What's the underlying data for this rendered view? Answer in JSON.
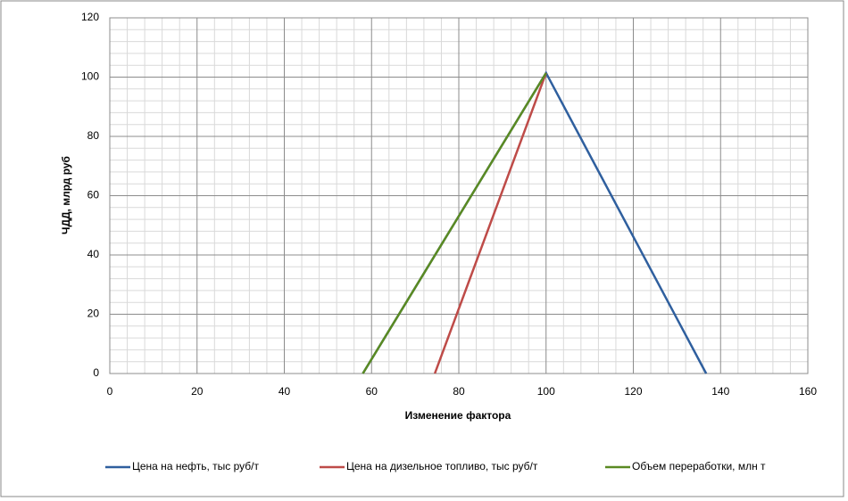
{
  "chart_data": {
    "type": "line",
    "x_label": "Изменение фактора",
    "y_label": "ЧДД, млрд руб",
    "xlim": [
      0,
      160
    ],
    "xticks": [
      0,
      20,
      40,
      60,
      80,
      100,
      120,
      140,
      160
    ],
    "ylim": [
      0,
      120
    ],
    "yticks": [
      0,
      20,
      40,
      60,
      80,
      100,
      120
    ],
    "grid": true,
    "legend": "bottom",
    "series": [
      {
        "name": "Цена на нефть, тыс руб/т",
        "color": "#2f5f9e",
        "x": [
          58,
          100,
          136.7
        ],
        "values": [
          0,
          101.4,
          0
        ]
      },
      {
        "name": "Цена на дизельное топливо, тыс руб/т",
        "color": "#be4b48",
        "x": [
          74.5,
          100
        ],
        "values": [
          0,
          101.4
        ]
      },
      {
        "name": "Объем переработки, млн т",
        "color": "#5a8a22",
        "x": [
          58,
          100
        ],
        "values": [
          0,
          101.4
        ]
      }
    ]
  }
}
